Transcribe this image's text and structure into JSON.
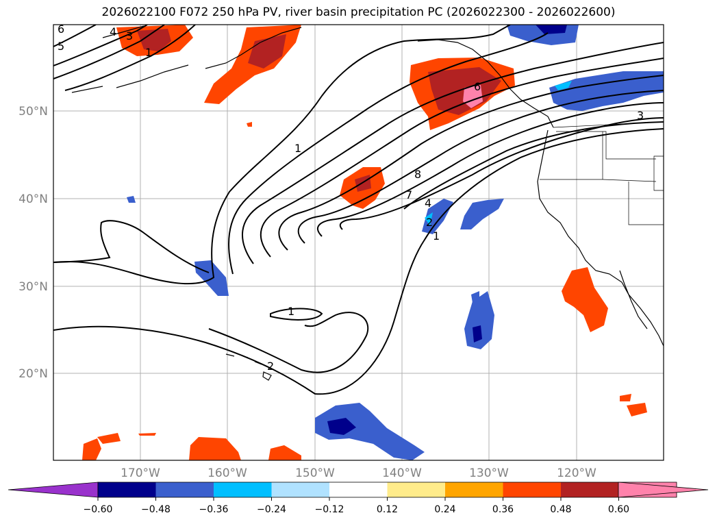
{
  "title": "2026022100 F072 250 hPa PV, river basin precipitation PC (2026022300 - 2026022600)",
  "latitude_labels": [
    "50°N",
    "40°N",
    "30°N",
    "20°N"
  ],
  "longitude_labels": [
    "170°W",
    "160°W",
    "150°W",
    "140°W",
    "130°W",
    "120°W"
  ],
  "colorbar": {
    "tick_labels": [
      "−0.60",
      "−0.48",
      "−0.36",
      "−0.24",
      "−0.12",
      "0.12",
      "0.24",
      "0.36",
      "0.48",
      "0.60"
    ],
    "colors": [
      "#9932cc",
      "#00008b",
      "#3a5fcd",
      "#00bfff",
      "#b0e2ff",
      "#ffffff",
      "#ffec8b",
      "#ffa500",
      "#ff4500",
      "#b22222",
      "#ff82ab",
      "#ff82ab"
    ]
  },
  "contour_labels": [
    "6",
    "5",
    "4",
    "3",
    "1",
    "1",
    "8",
    "7",
    "4",
    "2",
    "1",
    "6",
    "3",
    "1",
    "2"
  ],
  "colors": {
    "negative_strong": "#00008b",
    "negative_mid": "#3a5fcd",
    "negative_light": "#00bfff",
    "positive_mid": "#ff4500",
    "positive_strong": "#b22222",
    "positive_max": "#ff82ab"
  }
}
